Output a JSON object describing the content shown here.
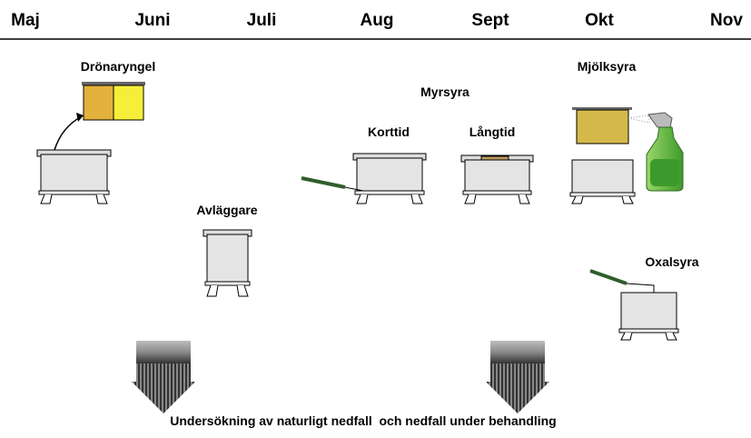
{
  "months": [
    "Maj",
    "Juni",
    "Juli",
    "Aug",
    "Sept",
    "Okt",
    "Nov"
  ],
  "labels": {
    "dronaryngel": "Drönaryngel",
    "myrsyra": "Myrsyra",
    "mjolksyra": "Mjölksyra",
    "korttid": "Korttid",
    "langtid": "Långtid",
    "avlaggare": "Avläggare",
    "oxalsyra": "Oxalsyra"
  },
  "caption": "Undersökning av naturligt nedfall  och nedfall under behandling"
}
